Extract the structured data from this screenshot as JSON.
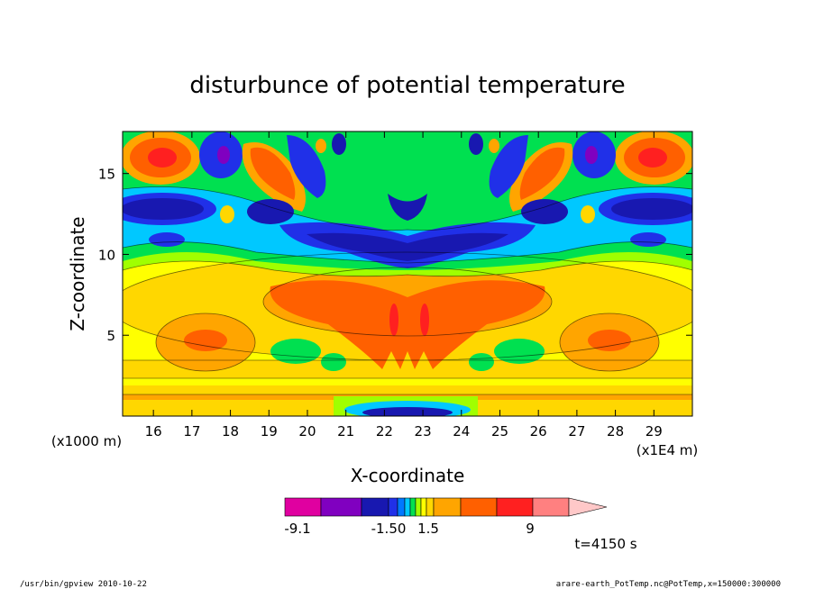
{
  "chart_data": {
    "type": "heatmap",
    "title": "disturbunce of potential temperature",
    "xlabel": "X-coordinate",
    "ylabel": "Z-coordinate",
    "x_unit": "(x1E4 m)",
    "y_unit": "(x1000 m)",
    "xlim": [
      15.2,
      30.0
    ],
    "ylim": [
      0.0,
      17.6
    ],
    "x_ticks": [
      "16",
      "17",
      "18",
      "19",
      "20",
      "21",
      "22",
      "23",
      "24",
      "25",
      "26",
      "27",
      "28",
      "29"
    ],
    "y_ticks": [
      "5",
      "10",
      "15"
    ],
    "x_tick_values": [
      16,
      17,
      18,
      19,
      20,
      21,
      22,
      23,
      24,
      25,
      26,
      27,
      28,
      29
    ],
    "y_tick_values": [
      5,
      10,
      15
    ],
    "colorbar": {
      "labels": [
        "-9.1",
        "-1.50",
        "1.5",
        "9"
      ],
      "colors": [
        "#e000a0",
        "#8000c0",
        "#1818b0",
        "#2030e8",
        "#0078ff",
        "#00c8ff",
        "#00e050",
        "#a0ff00",
        "#ffff00",
        "#ffd700",
        "#ffa500",
        "#ff6000",
        "#ff2020",
        "#ff8080",
        "#ffc8c8"
      ]
    },
    "annotation": "t=4150 s"
  },
  "footer": {
    "left": "/usr/bin/gpview   2010-10-22",
    "right": "arare-earth_PotTemp.nc@PotTemp,x=150000:300000"
  }
}
